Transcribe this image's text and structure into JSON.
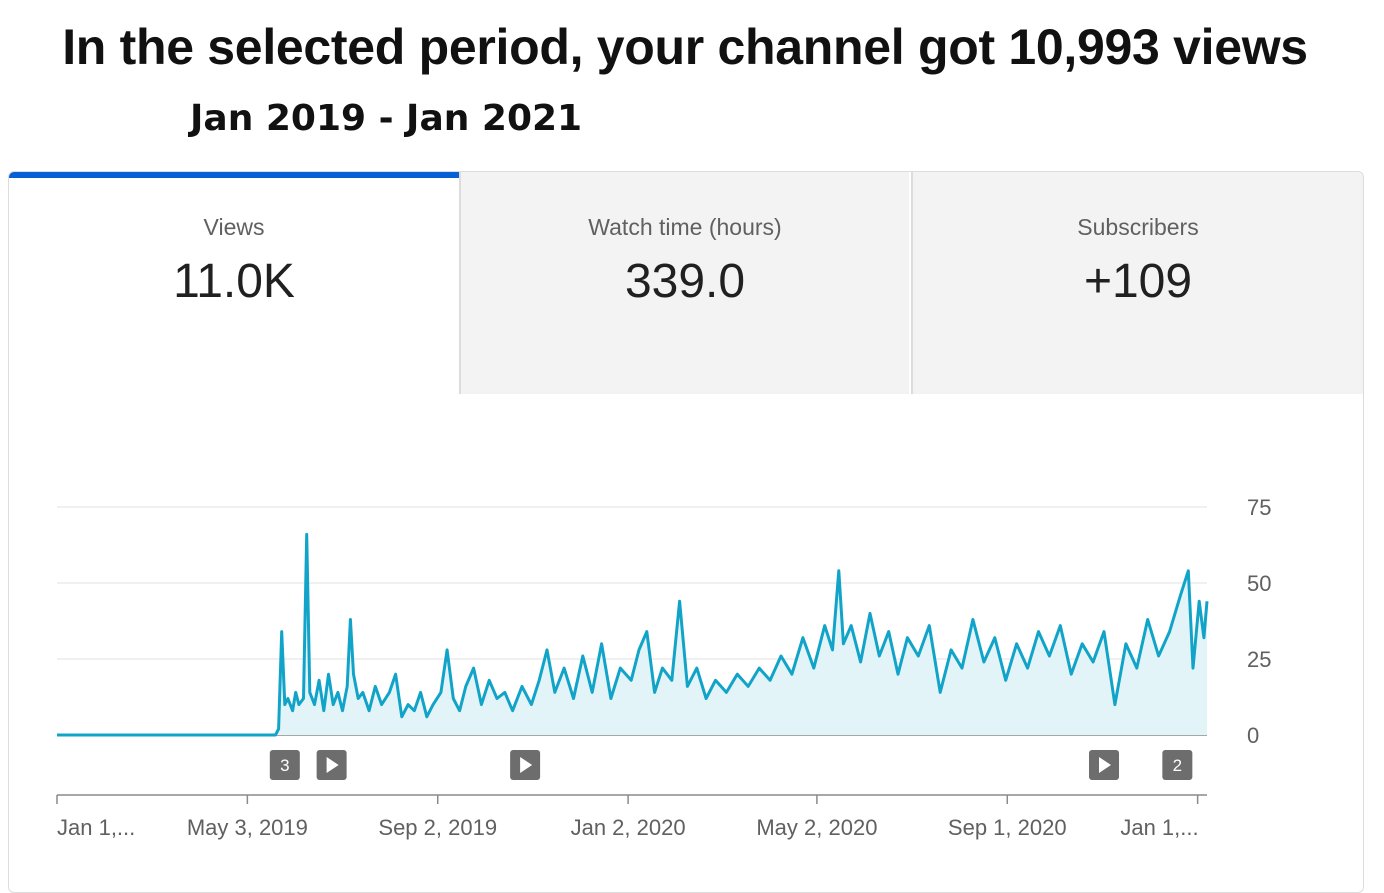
{
  "headline": "In the selected period, your channel got 10,993 views",
  "period": "Jan 2019 - Jan 2021",
  "tabs": [
    {
      "label": "Views",
      "value": "11.0K",
      "active": true
    },
    {
      "label": "Watch time (hours)",
      "value": "339.0",
      "active": false
    },
    {
      "label": "Subscribers",
      "value": "+109",
      "active": false
    }
  ],
  "colors": {
    "accent": "#065fd4",
    "line": "#12a4c8",
    "area": "#e3f4f8",
    "marker": "#6d6d6d"
  },
  "chart_data": {
    "type": "area",
    "title": "",
    "xlabel": "",
    "ylabel": "",
    "ylim": [
      0,
      75
    ],
    "y_ticks": [
      "75",
      "50",
      "25",
      "0"
    ],
    "x_range": [
      "2019-01-01",
      "2021-01-07"
    ],
    "x_ticks": [
      {
        "date": "2019-01-01",
        "label": "Jan 1,..."
      },
      {
        "date": "2019-05-03",
        "label": "May 3, 2019"
      },
      {
        "date": "2019-09-02",
        "label": "Sep 2, 2019"
      },
      {
        "date": "2020-01-02",
        "label": "Jan 2, 2020"
      },
      {
        "date": "2020-05-02",
        "label": "May 2, 2020"
      },
      {
        "date": "2020-09-01",
        "label": "Sep 1, 2020"
      },
      {
        "date": "2021-01-01",
        "label": "Jan 1,..."
      }
    ],
    "grid": true,
    "series": [
      {
        "points": [
          [
            "2019-01-01",
            0
          ],
          [
            "2019-05-21",
            0
          ],
          [
            "2019-05-23",
            2
          ],
          [
            "2019-05-25",
            34
          ],
          [
            "2019-05-27",
            10
          ],
          [
            "2019-05-29",
            12
          ],
          [
            "2019-06-01",
            8
          ],
          [
            "2019-06-03",
            14
          ],
          [
            "2019-06-05",
            10
          ],
          [
            "2019-06-08",
            12
          ],
          [
            "2019-06-10",
            66
          ],
          [
            "2019-06-12",
            14
          ],
          [
            "2019-06-15",
            10
          ],
          [
            "2019-06-18",
            18
          ],
          [
            "2019-06-21",
            8
          ],
          [
            "2019-06-24",
            20
          ],
          [
            "2019-06-27",
            10
          ],
          [
            "2019-06-30",
            14
          ],
          [
            "2019-07-03",
            8
          ],
          [
            "2019-07-06",
            16
          ],
          [
            "2019-07-08",
            38
          ],
          [
            "2019-07-10",
            20
          ],
          [
            "2019-07-13",
            12
          ],
          [
            "2019-07-16",
            14
          ],
          [
            "2019-07-20",
            8
          ],
          [
            "2019-07-24",
            16
          ],
          [
            "2019-07-28",
            10
          ],
          [
            "2019-08-02",
            14
          ],
          [
            "2019-08-06",
            20
          ],
          [
            "2019-08-10",
            6
          ],
          [
            "2019-08-14",
            10
          ],
          [
            "2019-08-18",
            8
          ],
          [
            "2019-08-22",
            14
          ],
          [
            "2019-08-26",
            6
          ],
          [
            "2019-08-30",
            10
          ],
          [
            "2019-09-04",
            14
          ],
          [
            "2019-09-08",
            28
          ],
          [
            "2019-09-12",
            12
          ],
          [
            "2019-09-16",
            8
          ],
          [
            "2019-09-20",
            16
          ],
          [
            "2019-09-25",
            22
          ],
          [
            "2019-09-30",
            10
          ],
          [
            "2019-10-05",
            18
          ],
          [
            "2019-10-10",
            12
          ],
          [
            "2019-10-15",
            14
          ],
          [
            "2019-10-20",
            8
          ],
          [
            "2019-10-26",
            16
          ],
          [
            "2019-11-01",
            10
          ],
          [
            "2019-11-06",
            18
          ],
          [
            "2019-11-11",
            28
          ],
          [
            "2019-11-16",
            14
          ],
          [
            "2019-11-22",
            22
          ],
          [
            "2019-11-28",
            12
          ],
          [
            "2019-12-04",
            26
          ],
          [
            "2019-12-10",
            14
          ],
          [
            "2019-12-16",
            30
          ],
          [
            "2019-12-22",
            12
          ],
          [
            "2019-12-28",
            22
          ],
          [
            "2020-01-04",
            18
          ],
          [
            "2020-01-09",
            28
          ],
          [
            "2020-01-14",
            34
          ],
          [
            "2020-01-19",
            14
          ],
          [
            "2020-01-24",
            22
          ],
          [
            "2020-01-30",
            18
          ],
          [
            "2020-02-04",
            44
          ],
          [
            "2020-02-09",
            16
          ],
          [
            "2020-02-15",
            22
          ],
          [
            "2020-02-21",
            12
          ],
          [
            "2020-02-27",
            18
          ],
          [
            "2020-03-05",
            14
          ],
          [
            "2020-03-12",
            20
          ],
          [
            "2020-03-19",
            16
          ],
          [
            "2020-03-26",
            22
          ],
          [
            "2020-04-02",
            18
          ],
          [
            "2020-04-09",
            26
          ],
          [
            "2020-04-16",
            20
          ],
          [
            "2020-04-23",
            32
          ],
          [
            "2020-04-30",
            22
          ],
          [
            "2020-05-07",
            36
          ],
          [
            "2020-05-12",
            28
          ],
          [
            "2020-05-16",
            54
          ],
          [
            "2020-05-19",
            30
          ],
          [
            "2020-05-24",
            36
          ],
          [
            "2020-05-30",
            24
          ],
          [
            "2020-06-05",
            40
          ],
          [
            "2020-06-11",
            26
          ],
          [
            "2020-06-17",
            34
          ],
          [
            "2020-06-23",
            20
          ],
          [
            "2020-06-29",
            32
          ],
          [
            "2020-07-06",
            26
          ],
          [
            "2020-07-13",
            36
          ],
          [
            "2020-07-20",
            14
          ],
          [
            "2020-07-27",
            28
          ],
          [
            "2020-08-03",
            22
          ],
          [
            "2020-08-10",
            38
          ],
          [
            "2020-08-17",
            24
          ],
          [
            "2020-08-24",
            32
          ],
          [
            "2020-08-31",
            18
          ],
          [
            "2020-09-07",
            30
          ],
          [
            "2020-09-14",
            22
          ],
          [
            "2020-09-21",
            34
          ],
          [
            "2020-09-28",
            26
          ],
          [
            "2020-10-05",
            36
          ],
          [
            "2020-10-12",
            20
          ],
          [
            "2020-10-19",
            30
          ],
          [
            "2020-10-26",
            24
          ],
          [
            "2020-11-02",
            34
          ],
          [
            "2020-11-09",
            10
          ],
          [
            "2020-11-16",
            30
          ],
          [
            "2020-11-23",
            22
          ],
          [
            "2020-11-30",
            38
          ],
          [
            "2020-12-07",
            26
          ],
          [
            "2020-12-14",
            34
          ],
          [
            "2020-12-21",
            46
          ],
          [
            "2020-12-26",
            54
          ],
          [
            "2020-12-29",
            22
          ],
          [
            "2021-01-02",
            44
          ],
          [
            "2021-01-05",
            32
          ],
          [
            "2021-01-07",
            44
          ]
        ]
      }
    ],
    "markers": [
      {
        "date": "2019-05-27",
        "label": "3",
        "kind": "count"
      },
      {
        "date": "2019-06-26",
        "label": "",
        "kind": "video"
      },
      {
        "date": "2019-10-28",
        "label": "",
        "kind": "video"
      },
      {
        "date": "2020-11-02",
        "label": "",
        "kind": "video"
      },
      {
        "date": "2020-12-19",
        "label": "2",
        "kind": "count"
      }
    ]
  }
}
